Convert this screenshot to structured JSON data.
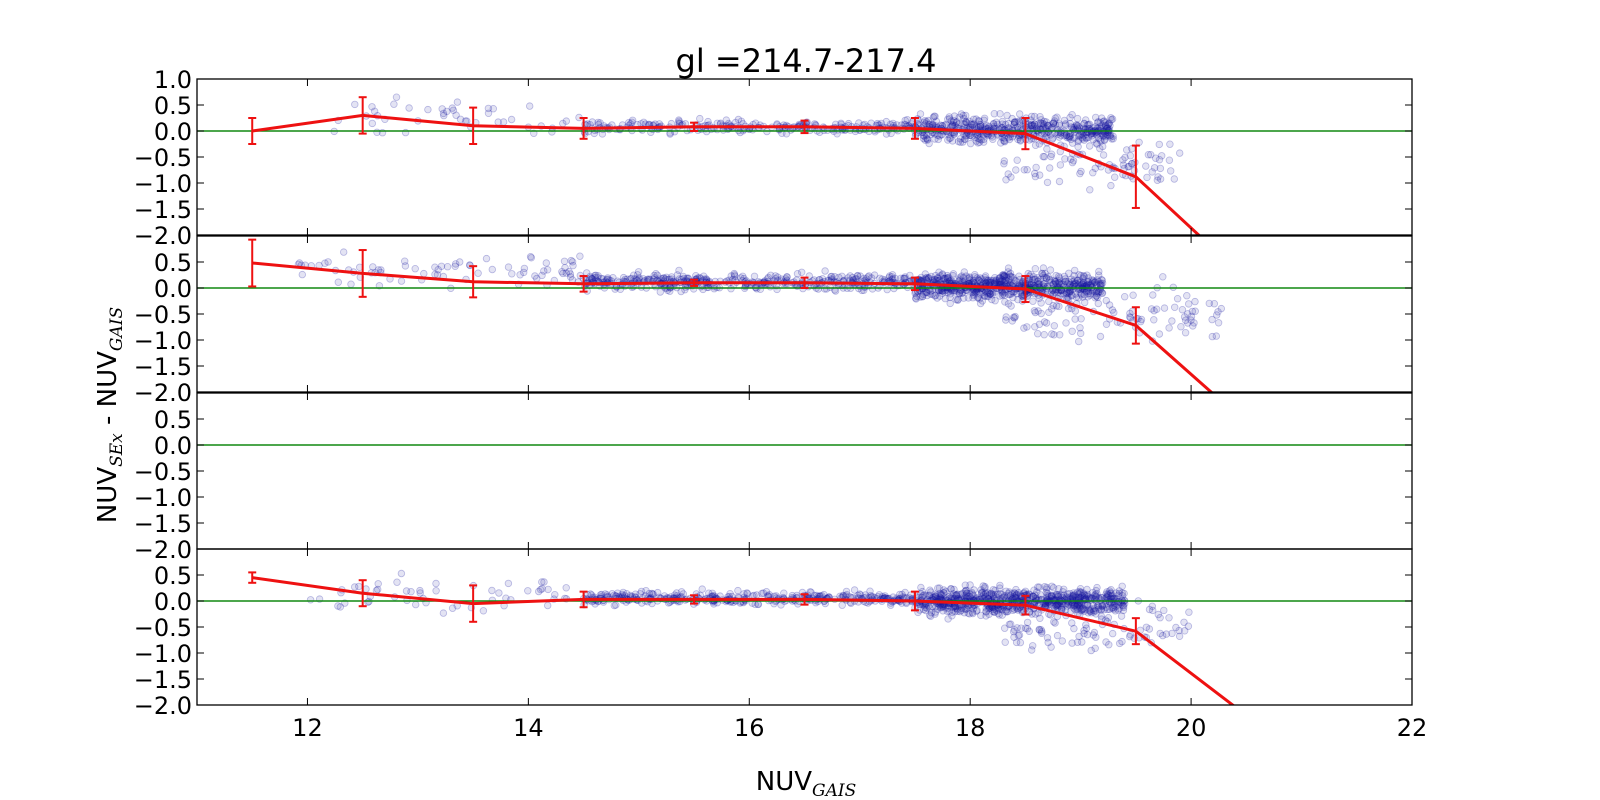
{
  "chart_data": {
    "type": "scatter",
    "title": "gl =214.7-217.4",
    "xlabel_main": "NUV",
    "xlabel_sub": "GAIS",
    "ylabel_main_1": "NUV",
    "ylabel_sub_1": "SEx",
    "ylabel_sep": " - ",
    "ylabel_main_2": "NUV",
    "ylabel_sub_2": "GAIS",
    "xlim": [
      11,
      22
    ],
    "ylim": [
      -2.0,
      1.0
    ],
    "x_ticks": [
      12,
      14,
      16,
      18,
      20,
      22
    ],
    "y_ticks_top_panel": [
      "1.0",
      "0.5",
      "0.0",
      "−0.5",
      "−1.0",
      "−1.5",
      "−2.0"
    ],
    "y_ticks_other_panels": [
      "0.5",
      "0.0",
      "−0.5",
      "−1.0",
      "−1.5",
      "−2.0"
    ],
    "grid": false,
    "colors": {
      "scatter": "#1a1aa0",
      "median_line": "#ee1111",
      "zero_line": "#118811"
    },
    "panels": [
      {
        "median_x": [
          11.5,
          12.5,
          13.5,
          14.5,
          15.5,
          16.5,
          17.5,
          18.5,
          19.5,
          20.5
        ],
        "median_y": [
          0.0,
          0.3,
          0.1,
          0.05,
          0.08,
          0.08,
          0.05,
          -0.05,
          -0.88,
          -2.85
        ],
        "err": [
          0.25,
          0.35,
          0.35,
          0.2,
          0.08,
          0.12,
          0.2,
          0.3,
          0.6,
          0
        ],
        "scatter_clusters": [
          {
            "x": [
              12.0,
              14.5
            ],
            "y_center": 0.25,
            "y_spread": 0.35,
            "n": 45
          },
          {
            "x": [
              14.5,
              17.5
            ],
            "y_center": 0.08,
            "y_spread": 0.12,
            "n": 260
          },
          {
            "x": [
              17.5,
              19.3
            ],
            "y_center": 0.02,
            "y_spread": 0.25,
            "n": 520
          },
          {
            "x": [
              18.3,
              19.9
            ],
            "y_center": -0.6,
            "y_spread": 0.45,
            "n": 90
          }
        ]
      },
      {
        "median_x": [
          11.5,
          12.5,
          13.5,
          14.5,
          15.5,
          16.5,
          17.5,
          18.5,
          19.5,
          20.5
        ],
        "median_y": [
          0.48,
          0.28,
          0.12,
          0.08,
          0.1,
          0.1,
          0.08,
          -0.02,
          -0.72,
          -2.6
        ],
        "err": [
          0.45,
          0.45,
          0.3,
          0.15,
          0.06,
          0.1,
          0.12,
          0.25,
          0.35,
          0
        ],
        "scatter_clusters": [
          {
            "x": [
              11.8,
              14.5
            ],
            "y_center": 0.35,
            "y_spread": 0.35,
            "n": 80
          },
          {
            "x": [
              14.5,
              17.5
            ],
            "y_center": 0.12,
            "y_spread": 0.15,
            "n": 420
          },
          {
            "x": [
              17.5,
              19.2
            ],
            "y_center": 0.03,
            "y_spread": 0.25,
            "n": 700
          },
          {
            "x": [
              18.3,
              20.3
            ],
            "y_center": -0.5,
            "y_spread": 0.5,
            "n": 110
          }
        ]
      },
      {
        "median_x": [],
        "median_y": [],
        "err": [],
        "scatter_clusters": []
      },
      {
        "median_x": [
          11.5,
          12.5,
          13.5,
          14.5,
          15.5,
          16.5,
          17.5,
          18.5,
          19.5,
          20.5
        ],
        "median_y": [
          0.45,
          0.15,
          -0.05,
          0.03,
          0.03,
          0.03,
          0.0,
          -0.08,
          -0.58,
          -2.2
        ],
        "err": [
          0.1,
          0.25,
          0.35,
          0.15,
          0.08,
          0.1,
          0.18,
          0.18,
          0.25,
          0
        ],
        "scatter_clusters": [
          {
            "x": [
              12.0,
              14.5
            ],
            "y_center": 0.15,
            "y_spread": 0.35,
            "n": 55
          },
          {
            "x": [
              14.5,
              17.5
            ],
            "y_center": 0.05,
            "y_spread": 0.12,
            "n": 380
          },
          {
            "x": [
              17.5,
              19.4
            ],
            "y_center": 0.0,
            "y_spread": 0.25,
            "n": 750
          },
          {
            "x": [
              18.3,
              20.0
            ],
            "y_center": -0.5,
            "y_spread": 0.45,
            "n": 100
          }
        ]
      }
    ]
  }
}
